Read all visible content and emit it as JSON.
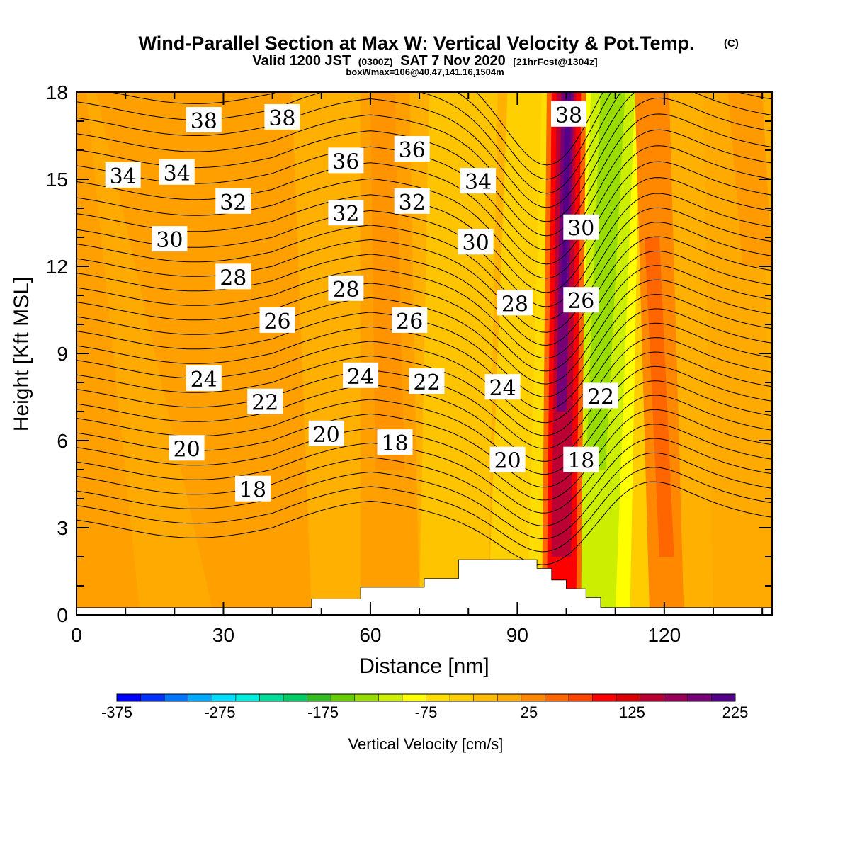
{
  "header": {
    "title_main": "Wind-Parallel Section at Max W: Vertical Velocity & Pot.Temp.",
    "title_mark": "(C)",
    "subtitle_valid": "Valid 1200 JST",
    "subtitle_z": "(0300Z)",
    "subtitle_date": "SAT 7 Nov 2020",
    "subtitle_fcst": "[21hrFcst@1304z]",
    "box_info": "boxWmax=106@40.47,141.16,1504m"
  },
  "colorbar": {
    "title": "Vertical Velocity [cm/s]",
    "tick_labels": [
      "-375",
      "-275",
      "-175",
      "-75",
      "25",
      "125",
      "225"
    ],
    "colors": [
      "#0000ff",
      "#0033ff",
      "#0077ff",
      "#00aaff",
      "#00ddff",
      "#00eedd",
      "#00dd99",
      "#00cc66",
      "#33bb22",
      "#66cc00",
      "#99dd00",
      "#ccee00",
      "#ffff00",
      "#ffdd00",
      "#ffcc00",
      "#ffbb00",
      "#ffaa00",
      "#ff8800",
      "#ff6600",
      "#ff4400",
      "#ff0000",
      "#dd0000",
      "#bb0033",
      "#99005a",
      "#770077",
      "#550088"
    ],
    "range": [
      -375,
      225
    ]
  },
  "chart_data": {
    "type": "heatmap",
    "title": "Wind-Parallel Section at Max W: Vertical Velocity & Pot.Temp.",
    "xlabel": "Distance [nm]",
    "ylabel": "Height [Kft MSL]",
    "xlim": [
      0,
      142
    ],
    "ylim": [
      0,
      18
    ],
    "x_ticks": [
      0,
      30,
      60,
      90,
      120
    ],
    "y_ticks": [
      0,
      3,
      6,
      9,
      12,
      15,
      18
    ],
    "grid": false,
    "field": "vertical velocity [cm/s]",
    "background_level": 25,
    "features": [
      {
        "kind": "updraft",
        "x_bottom": 96,
        "x_top": 100,
        "peak": 225
      },
      {
        "kind": "downdraft",
        "x_bottom": 104,
        "x_top": 110,
        "peak": -125
      },
      {
        "kind": "updraft",
        "x_bottom": 120,
        "x_top": 117,
        "peak": 75
      },
      {
        "kind": "updraft",
        "x_bottom": 64,
        "x_top": 63,
        "peak": 50
      }
    ],
    "terrain": [
      [
        0,
        0.25
      ],
      [
        48,
        0.25
      ],
      [
        48,
        0.55
      ],
      [
        58,
        0.55
      ],
      [
        58,
        0.95
      ],
      [
        71,
        0.95
      ],
      [
        71,
        1.25
      ],
      [
        78,
        1.25
      ],
      [
        78,
        1.9
      ],
      [
        94,
        1.9
      ],
      [
        94,
        1.6
      ],
      [
        97,
        1.6
      ],
      [
        97,
        1.2
      ],
      [
        100,
        1.2
      ],
      [
        100,
        0.9
      ],
      [
        104,
        0.9
      ],
      [
        104,
        0.6
      ],
      [
        107,
        0.6
      ],
      [
        107,
        0.25
      ],
      [
        142,
        0.25
      ]
    ],
    "contour_labels": [
      {
        "text": "38",
        "x": 26,
        "y": 17.0
      },
      {
        "text": "38",
        "x": 42,
        "y": 17.1
      },
      {
        "text": "34",
        "x": 9.5,
        "y": 15.1
      },
      {
        "text": "34",
        "x": 20.5,
        "y": 15.2
      },
      {
        "text": "36",
        "x": 55,
        "y": 15.6
      },
      {
        "text": "36",
        "x": 68.5,
        "y": 16.0
      },
      {
        "text": "38",
        "x": 100.5,
        "y": 17.2
      },
      {
        "text": "32",
        "x": 32,
        "y": 14.2
      },
      {
        "text": "32",
        "x": 55,
        "y": 13.8
      },
      {
        "text": "32",
        "x": 68.5,
        "y": 14.2
      },
      {
        "text": "34",
        "x": 82,
        "y": 14.9
      },
      {
        "text": "30",
        "x": 19,
        "y": 12.9
      },
      {
        "text": "30",
        "x": 81.5,
        "y": 12.8
      },
      {
        "text": "30",
        "x": 103,
        "y": 13.3
      },
      {
        "text": "28",
        "x": 32,
        "y": 11.6
      },
      {
        "text": "28",
        "x": 55,
        "y": 11.2
      },
      {
        "text": "28",
        "x": 89.5,
        "y": 10.7
      },
      {
        "text": "26",
        "x": 41,
        "y": 10.1
      },
      {
        "text": "26",
        "x": 68,
        "y": 10.1
      },
      {
        "text": "26",
        "x": 103,
        "y": 10.8
      },
      {
        "text": "24",
        "x": 26,
        "y": 8.1
      },
      {
        "text": "24",
        "x": 58,
        "y": 8.2
      },
      {
        "text": "22",
        "x": 38.5,
        "y": 7.3
      },
      {
        "text": "22",
        "x": 71.5,
        "y": 8.0
      },
      {
        "text": "24",
        "x": 87,
        "y": 7.8
      },
      {
        "text": "22",
        "x": 107,
        "y": 7.5
      },
      {
        "text": "20",
        "x": 22.5,
        "y": 5.7
      },
      {
        "text": "20",
        "x": 51,
        "y": 6.2
      },
      {
        "text": "18",
        "x": 65,
        "y": 5.9
      },
      {
        "text": "20",
        "x": 88,
        "y": 5.3
      },
      {
        "text": "18",
        "x": 103,
        "y": 5.3
      },
      {
        "text": "18",
        "x": 36,
        "y": 4.3
      }
    ]
  }
}
